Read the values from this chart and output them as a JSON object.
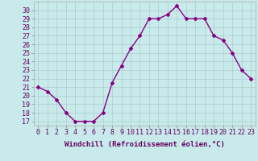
{
  "x": [
    0,
    1,
    2,
    3,
    4,
    5,
    6,
    7,
    8,
    9,
    10,
    11,
    12,
    13,
    14,
    15,
    16,
    17,
    18,
    19,
    20,
    21,
    22,
    23
  ],
  "y": [
    21,
    20.5,
    19.5,
    18,
    17,
    17,
    17,
    18,
    21.5,
    23.5,
    25.5,
    27,
    29,
    29,
    29.5,
    30.5,
    29,
    29,
    29,
    27,
    26.5,
    25,
    23,
    22
  ],
  "line_color": "#880088",
  "marker": "D",
  "marker_size": 2.0,
  "bg_color": "#c8eaea",
  "grid_color": "#aacccc",
  "xlabel": "Windchill (Refroidissement éolien,°C)",
  "xlabel_fontsize": 6.5,
  "xtick_labels": [
    "0",
    "1",
    "2",
    "3",
    "4",
    "5",
    "6",
    "7",
    "8",
    "9",
    "10",
    "11",
    "12",
    "13",
    "14",
    "15",
    "16",
    "17",
    "18",
    "19",
    "20",
    "21",
    "22",
    "23"
  ],
  "ytick_labels": [
    "17",
    "18",
    "19",
    "20",
    "21",
    "22",
    "23",
    "24",
    "25",
    "26",
    "27",
    "28",
    "29",
    "30"
  ],
  "ylim": [
    16.5,
    31.0
  ],
  "xlim": [
    -0.5,
    23.5
  ],
  "tick_fontsize": 6.0,
  "line_width": 1.0
}
